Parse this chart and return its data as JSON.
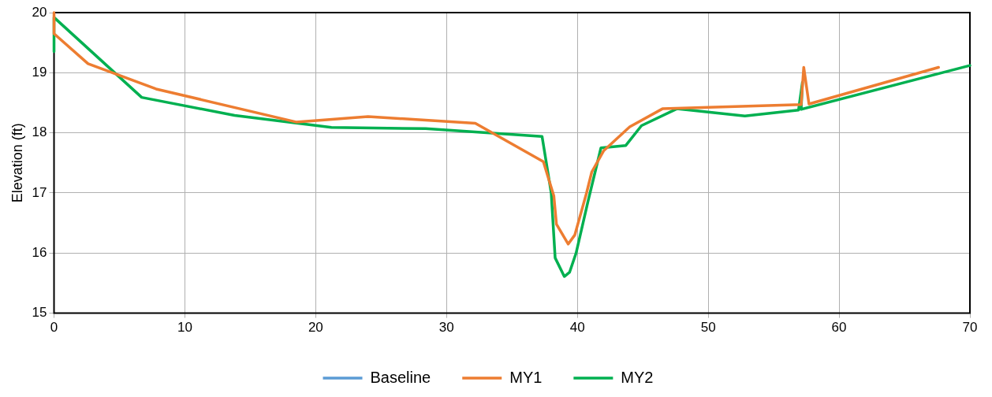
{
  "chart_data": {
    "type": "line",
    "ylabel": "Elevation (ft)",
    "xlim": [
      0,
      70
    ],
    "xticks": [
      0,
      10,
      20,
      30,
      40,
      50,
      60,
      70
    ],
    "ylim": [
      15,
      20
    ],
    "yticks": [
      15,
      16,
      17,
      18,
      19,
      20
    ],
    "grid": true,
    "legend": "bottom",
    "marker": "none",
    "line_style": "solid",
    "series": [
      {
        "name": "Baseline",
        "color": "#5b9bd5"
      },
      {
        "name": "MY1",
        "color": "#ed7d31",
        "x": [
          0,
          0,
          2.6,
          7.8,
          18.5,
          24,
          32.2,
          37.4,
          38.2,
          38.4,
          39.3,
          39.8,
          40.7,
          41.1,
          42,
          44,
          46.5,
          57.1,
          57.3,
          57.7,
          67.6
        ],
        "values": [
          20,
          19.65,
          19.15,
          18.73,
          18.18,
          18.27,
          18.16,
          17.52,
          16.95,
          16.48,
          16.15,
          16.3,
          17,
          17.35,
          17.7,
          18.1,
          18.4,
          18.47,
          19.09,
          18.48,
          19.09
        ]
      },
      {
        "name": "MY2",
        "color": "#00b050",
        "x": [
          0,
          0,
          6.7,
          13.8,
          21.2,
          28.4,
          37.3,
          38,
          38.3,
          39,
          39.4,
          39.9,
          40.8,
          41.8,
          43.7,
          44.9,
          47.6,
          52.8,
          56.9,
          57.2,
          57.1,
          70
        ],
        "values": [
          19.35,
          19.92,
          18.59,
          18.29,
          18.09,
          18.07,
          17.94,
          17,
          15.92,
          15.61,
          15.68,
          16,
          16.85,
          17.75,
          17.79,
          18.12,
          18.4,
          18.28,
          18.38,
          18.84,
          18.39,
          19.12
        ]
      }
    ]
  }
}
